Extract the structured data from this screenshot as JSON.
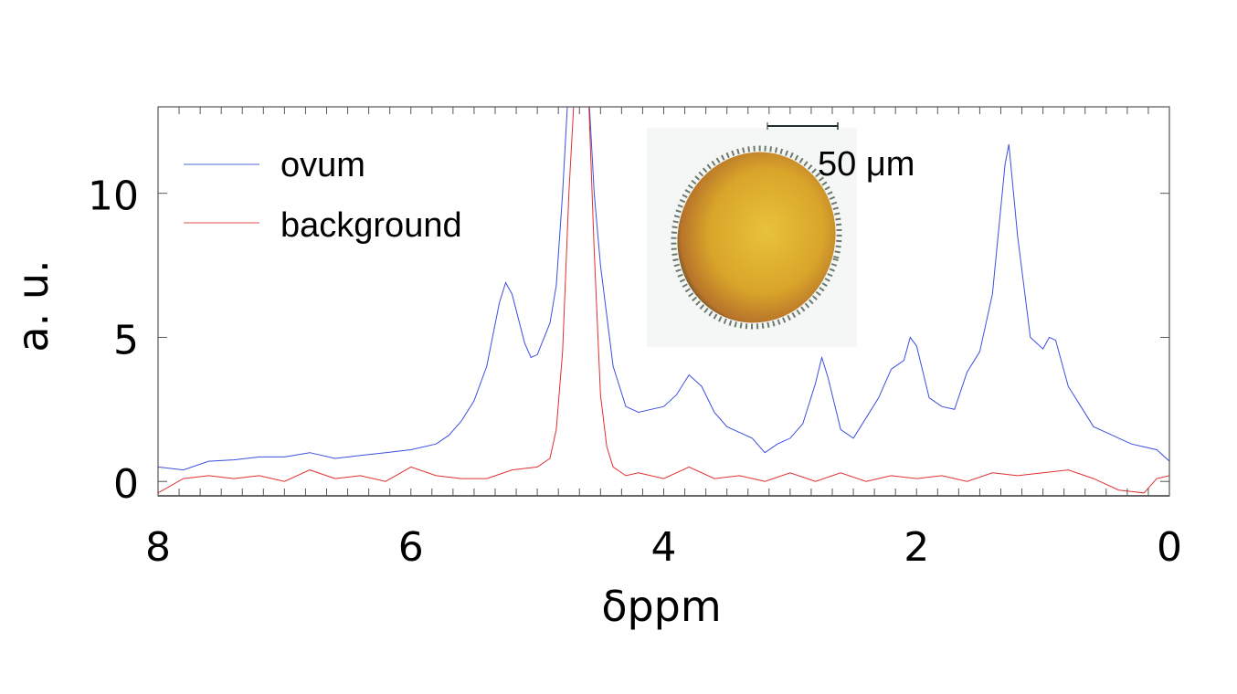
{
  "chart_data": {
    "type": "line",
    "xlabel": "δppm",
    "ylabel": "a. u.",
    "xlim": [
      8,
      0
    ],
    "ylim": [
      -0.5,
      13
    ],
    "x_reversed": true,
    "xticks": [
      "8",
      "6",
      "4",
      "2",
      "0"
    ],
    "yticks": [
      "0",
      "5",
      "10"
    ],
    "grid": false,
    "legend": "top-left",
    "series": [
      {
        "name": "ovum",
        "color": "#3c4fe0",
        "points": [
          [
            8.0,
            0.5
          ],
          [
            7.8,
            0.4
          ],
          [
            7.6,
            0.7
          ],
          [
            7.4,
            0.75
          ],
          [
            7.2,
            0.85
          ],
          [
            7.0,
            0.85
          ],
          [
            6.8,
            1.0
          ],
          [
            6.6,
            0.8
          ],
          [
            6.4,
            0.9
          ],
          [
            6.2,
            1.0
          ],
          [
            6.0,
            1.1
          ],
          [
            5.8,
            1.3
          ],
          [
            5.7,
            1.6
          ],
          [
            5.6,
            2.1
          ],
          [
            5.5,
            2.8
          ],
          [
            5.4,
            4.0
          ],
          [
            5.3,
            6.2
          ],
          [
            5.25,
            6.9
          ],
          [
            5.2,
            6.5
          ],
          [
            5.1,
            4.8
          ],
          [
            5.05,
            4.3
          ],
          [
            5.0,
            4.4
          ],
          [
            4.9,
            5.5
          ],
          [
            4.85,
            6.8
          ],
          [
            4.8,
            10.0
          ],
          [
            4.75,
            14.0
          ],
          [
            4.6,
            14.0
          ],
          [
            4.55,
            10.0
          ],
          [
            4.5,
            7.5
          ],
          [
            4.4,
            4.0
          ],
          [
            4.3,
            2.6
          ],
          [
            4.2,
            2.4
          ],
          [
            4.1,
            2.5
          ],
          [
            4.0,
            2.6
          ],
          [
            3.9,
            3.0
          ],
          [
            3.8,
            3.7
          ],
          [
            3.7,
            3.3
          ],
          [
            3.6,
            2.4
          ],
          [
            3.5,
            1.9
          ],
          [
            3.4,
            1.7
          ],
          [
            3.3,
            1.5
          ],
          [
            3.2,
            1.0
          ],
          [
            3.1,
            1.3
          ],
          [
            3.0,
            1.5
          ],
          [
            2.9,
            2.0
          ],
          [
            2.8,
            3.4
          ],
          [
            2.75,
            4.3
          ],
          [
            2.7,
            3.6
          ],
          [
            2.6,
            1.8
          ],
          [
            2.5,
            1.5
          ],
          [
            2.4,
            2.2
          ],
          [
            2.3,
            2.9
          ],
          [
            2.2,
            3.9
          ],
          [
            2.1,
            4.2
          ],
          [
            2.05,
            5.0
          ],
          [
            2.0,
            4.7
          ],
          [
            1.9,
            2.9
          ],
          [
            1.8,
            2.6
          ],
          [
            1.7,
            2.5
          ],
          [
            1.6,
            3.8
          ],
          [
            1.5,
            4.5
          ],
          [
            1.4,
            6.5
          ],
          [
            1.3,
            11.0
          ],
          [
            1.27,
            11.7
          ],
          [
            1.2,
            8.5
          ],
          [
            1.1,
            5.0
          ],
          [
            1.0,
            4.6
          ],
          [
            0.95,
            5.0
          ],
          [
            0.9,
            4.9
          ],
          [
            0.8,
            3.3
          ],
          [
            0.7,
            2.6
          ],
          [
            0.6,
            1.9
          ],
          [
            0.5,
            1.7
          ],
          [
            0.4,
            1.5
          ],
          [
            0.3,
            1.3
          ],
          [
            0.2,
            1.2
          ],
          [
            0.1,
            1.1
          ],
          [
            0.0,
            0.7
          ]
        ]
      },
      {
        "name": "background",
        "color": "#e03030",
        "points": [
          [
            8.0,
            -0.4
          ],
          [
            7.8,
            0.1
          ],
          [
            7.6,
            0.2
          ],
          [
            7.4,
            0.1
          ],
          [
            7.2,
            0.2
          ],
          [
            7.0,
            0.0
          ],
          [
            6.8,
            0.4
          ],
          [
            6.6,
            0.1
          ],
          [
            6.4,
            0.2
          ],
          [
            6.2,
            0.0
          ],
          [
            6.0,
            0.5
          ],
          [
            5.8,
            0.2
          ],
          [
            5.6,
            0.1
          ],
          [
            5.4,
            0.1
          ],
          [
            5.2,
            0.4
          ],
          [
            5.0,
            0.5
          ],
          [
            4.9,
            0.8
          ],
          [
            4.85,
            1.8
          ],
          [
            4.8,
            4.5
          ],
          [
            4.75,
            10.0
          ],
          [
            4.7,
            14.0
          ],
          [
            4.6,
            14.0
          ],
          [
            4.55,
            8.0
          ],
          [
            4.5,
            3.0
          ],
          [
            4.45,
            1.2
          ],
          [
            4.4,
            0.5
          ],
          [
            4.3,
            0.2
          ],
          [
            4.2,
            0.3
          ],
          [
            4.0,
            0.1
          ],
          [
            3.8,
            0.5
          ],
          [
            3.6,
            0.1
          ],
          [
            3.4,
            0.2
          ],
          [
            3.2,
            0.0
          ],
          [
            3.0,
            0.3
          ],
          [
            2.8,
            0.0
          ],
          [
            2.6,
            0.3
          ],
          [
            2.4,
            0.0
          ],
          [
            2.2,
            0.2
          ],
          [
            2.0,
            0.1
          ],
          [
            1.8,
            0.2
          ],
          [
            1.6,
            0.0
          ],
          [
            1.4,
            0.3
          ],
          [
            1.2,
            0.2
          ],
          [
            1.0,
            0.3
          ],
          [
            0.8,
            0.4
          ],
          [
            0.6,
            0.1
          ],
          [
            0.4,
            -0.3
          ],
          [
            0.2,
            -0.4
          ],
          [
            0.1,
            0.1
          ],
          [
            0.0,
            0.2
          ]
        ]
      }
    ],
    "inset": {
      "description_label": "ovum micrograph",
      "scale_bar_label": "50 μm"
    }
  }
}
